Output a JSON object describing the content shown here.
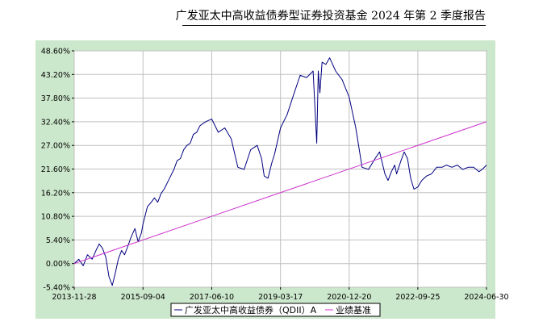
{
  "header": {
    "title": "广发亚太中高收益债券型证券投资基金 2024 年第 2 季度报告"
  },
  "chart_data": {
    "type": "line",
    "title": "",
    "xlabel": "",
    "ylabel": "",
    "ylim": [
      -5.4,
      48.6
    ],
    "y_ticks": [
      "-5.40%",
      "0.00%",
      "5.40%",
      "10.80%",
      "16.20%",
      "21.60%",
      "27.00%",
      "32.40%",
      "37.80%",
      "43.20%",
      "48.60%"
    ],
    "x_ticks": [
      "2013-11-28",
      "2015-09-04",
      "2017-06-10",
      "2019-03-17",
      "2020-12-20",
      "2022-09-25",
      "2024-06-30"
    ],
    "grid": true,
    "legend_position": "bottom",
    "colors": {
      "plot_bg": "#ffffff",
      "frame_bg": "#cce8cc",
      "fund": "#000080",
      "benchmark": "#cc33cc",
      "grid": "#c0c0c0"
    },
    "series": [
      {
        "name": "广发亚太中高收益债券（QDII）A",
        "x": [
          "2013-11-28",
          "2014-01-10",
          "2014-02-20",
          "2014-04-01",
          "2014-05-15",
          "2014-06-20",
          "2014-07-20",
          "2014-08-20",
          "2014-09-20",
          "2014-10-20",
          "2014-11-20",
          "2014-12-20",
          "2015-01-15",
          "2015-02-15",
          "2015-03-15",
          "2015-04-15",
          "2015-05-15",
          "2015-06-20",
          "2015-07-20",
          "2015-08-20",
          "2015-09-04",
          "2015-10-15",
          "2015-11-20",
          "2015-12-20",
          "2016-01-20",
          "2016-02-20",
          "2016-03-20",
          "2016-04-20",
          "2016-05-20",
          "2016-06-20",
          "2016-07-20",
          "2016-08-20",
          "2016-09-20",
          "2016-10-20",
          "2016-11-20",
          "2016-12-20",
          "2017-01-20",
          "2017-02-20",
          "2017-03-20",
          "2017-04-20",
          "2017-06-10",
          "2017-08-10",
          "2017-10-10",
          "2017-12-10",
          "2018-02-10",
          "2018-04-10",
          "2018-06-10",
          "2018-08-10",
          "2018-09-20",
          "2018-10-15",
          "2018-11-20",
          "2018-12-25",
          "2019-01-20",
          "2019-03-17",
          "2019-05-17",
          "2019-07-17",
          "2019-09-17",
          "2019-11-17",
          "2020-01-17",
          "2020-02-20",
          "2020-03-05",
          "2020-03-20",
          "2020-04-10",
          "2020-05-15",
          "2020-06-20",
          "2020-08-15",
          "2020-10-15",
          "2020-12-20",
          "2021-02-20",
          "2021-04-20",
          "2021-06-20",
          "2021-08-20",
          "2021-10-01",
          "2021-11-20",
          "2021-12-20",
          "2022-01-20",
          "2022-02-20",
          "2022-03-10",
          "2022-04-20",
          "2022-05-20",
          "2022-06-20",
          "2022-07-20",
          "2022-08-20",
          "2022-09-25",
          "2022-11-01",
          "2022-12-15",
          "2023-02-01",
          "2023-03-20",
          "2023-05-10",
          "2023-06-20",
          "2023-08-10",
          "2023-10-01",
          "2023-11-20",
          "2024-01-10",
          "2024-03-01",
          "2024-04-20",
          "2024-05-20",
          "2024-06-30"
        ],
        "y": [
          0.0,
          1.0,
          -0.5,
          2.0,
          1.0,
          3.0,
          4.5,
          3.5,
          1.5,
          -3.0,
          -5.0,
          -2.0,
          1.0,
          3.0,
          2.0,
          4.0,
          6.0,
          8.0,
          5.0,
          7.0,
          9.0,
          13.0,
          14.0,
          15.0,
          14.0,
          16.0,
          17.0,
          18.5,
          20.0,
          21.5,
          23.5,
          24.0,
          26.0,
          27.0,
          27.5,
          29.5,
          30.0,
          31.5,
          32.0,
          32.5,
          33.0,
          30.0,
          31.0,
          28.5,
          22.0,
          21.5,
          26.0,
          27.0,
          24.0,
          20.0,
          19.5,
          23.0,
          25.0,
          31.0,
          34.0,
          38.5,
          43.0,
          42.5,
          44.0,
          27.5,
          44.0,
          39.0,
          46.0,
          45.5,
          47.0,
          44.0,
          42.0,
          38.0,
          31.0,
          22.0,
          21.5,
          24.0,
          25.5,
          20.5,
          19.0,
          21.0,
          22.5,
          20.5,
          23.5,
          25.5,
          24.0,
          19.5,
          17.0,
          17.5,
          19.0,
          20.0,
          20.5,
          22.0,
          22.0,
          22.5,
          22.0,
          22.5,
          21.5,
          22.0,
          22.0,
          21.0,
          21.5,
          22.5
        ]
      },
      {
        "name": "业绩基准",
        "x": [
          "2013-11-28",
          "2024-06-30"
        ],
        "y": [
          0.0,
          32.4
        ]
      }
    ]
  }
}
